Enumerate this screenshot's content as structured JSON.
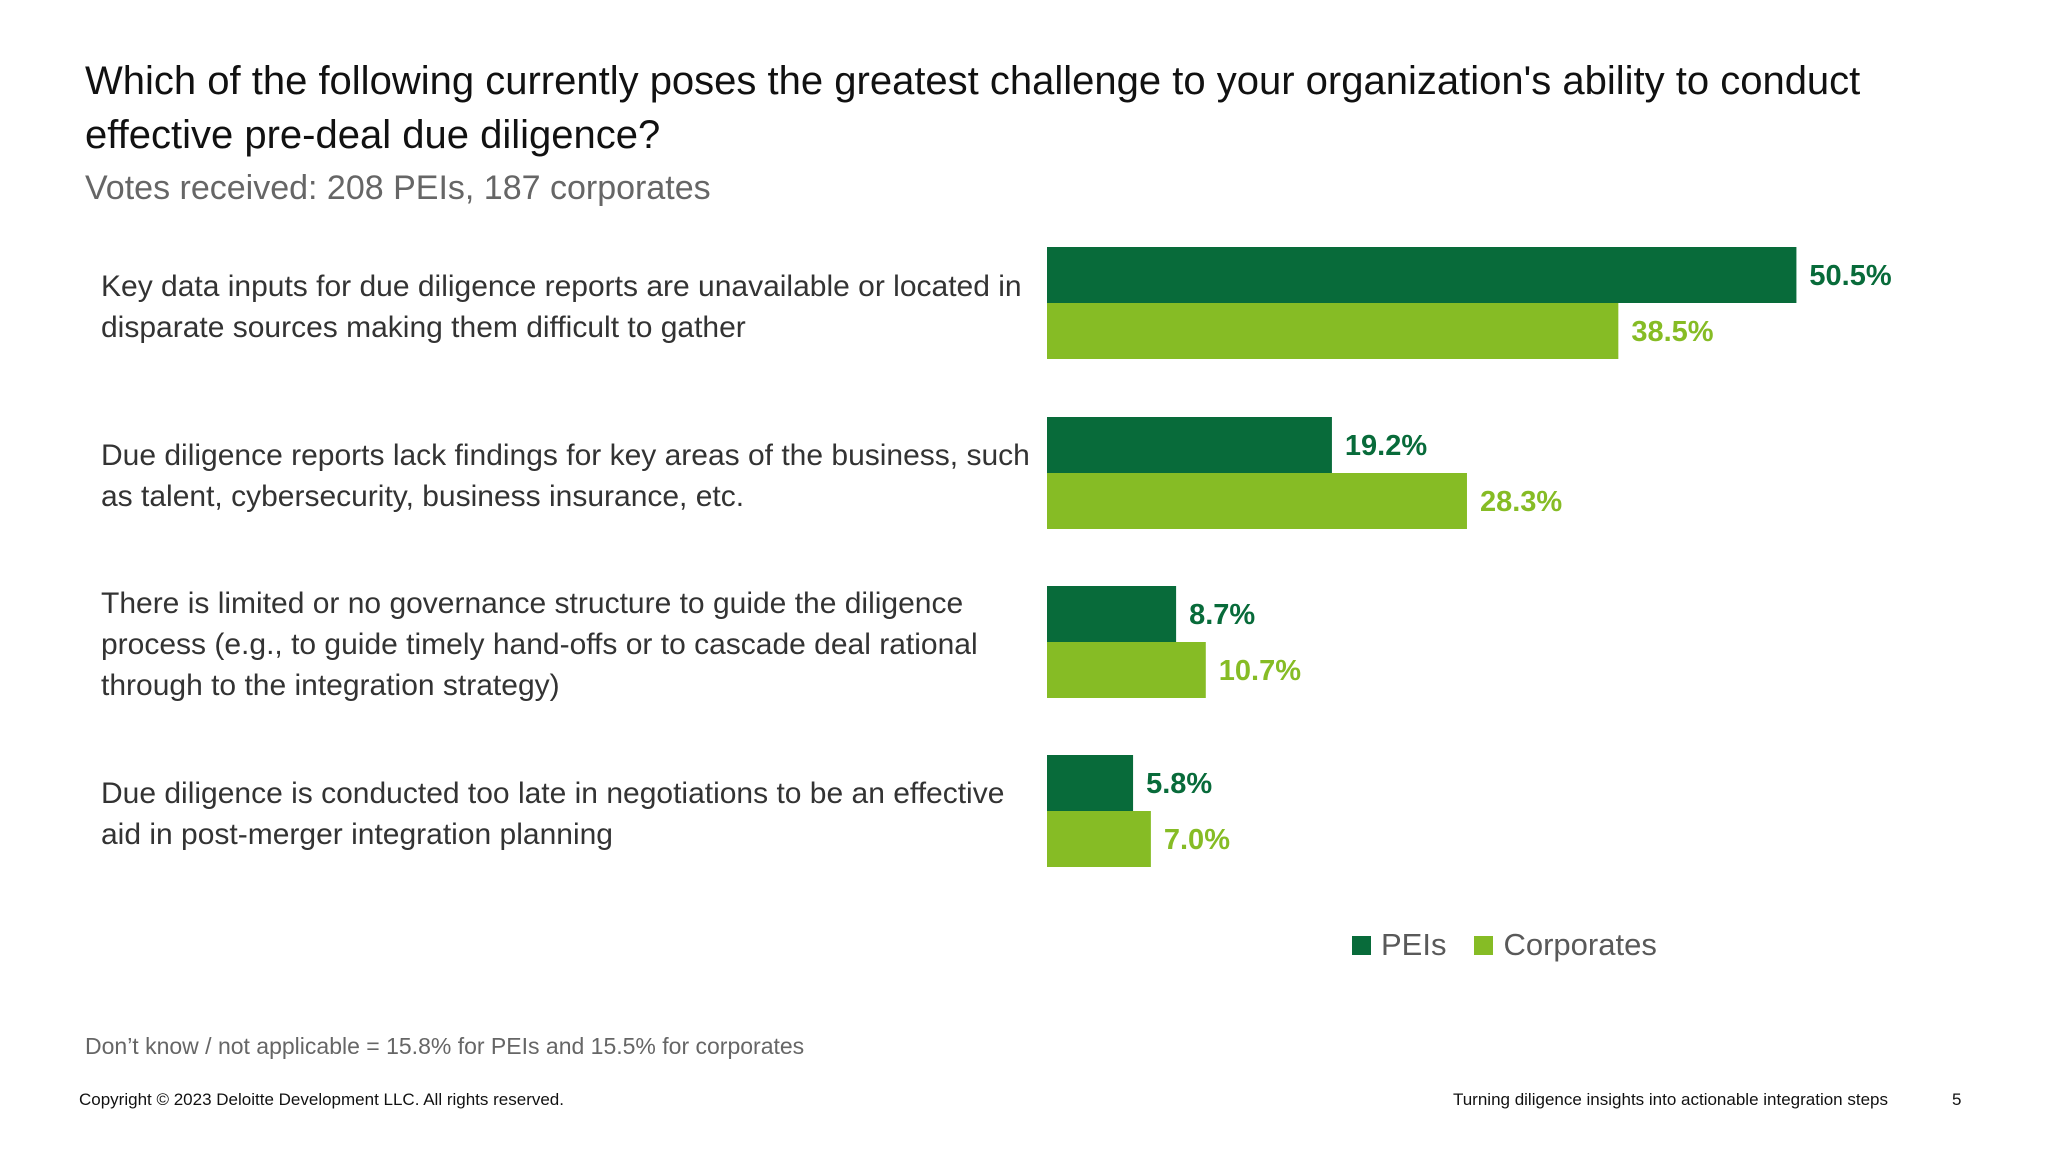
{
  "slide": {
    "title": "Which of the following currently poses the greatest challenge to your organization's ability to conduct effective pre-deal due diligence?",
    "subtitle": "Votes received: 208 PEIs, 187 corporates",
    "footnote": "Don’t know / not applicable = 15.8% for PEIs and 15.5% for corporates",
    "copyright": "Copyright © 2023 Deloitte Development LLC. All rights reserved.",
    "footer_title": "Turning diligence insights into actionable integration steps",
    "page_number": "5"
  },
  "colors": {
    "peis": "#086B3A",
    "corporates": "#86BC25"
  },
  "chart_data": {
    "type": "bar",
    "orientation": "horizontal",
    "categories": [
      "Key data inputs for due diligence reports are unavailable or located in disparate sources making them difficult to gather",
      "Due diligence reports lack findings for key areas of the business, such as talent, cybersecurity, business insurance, etc.",
      "There is limited or no governance structure to guide the diligence process (e.g., to guide timely hand-offs or to cascade deal rational through to the integration strategy)",
      "Due diligence is conducted too late in negotiations to be an effective aid in post-merger integration planning"
    ],
    "series": [
      {
        "name": "PEIs",
        "values": [
          50.5,
          19.2,
          8.7,
          5.8
        ],
        "labels": [
          "50.5%",
          "19.2%",
          "8.7%",
          "5.8%"
        ]
      },
      {
        "name": "Corporates",
        "values": [
          38.5,
          28.3,
          10.7,
          7.0
        ],
        "labels": [
          "38.5%",
          "28.3%",
          "10.7%",
          "7.0%"
        ]
      }
    ],
    "value_unit": "%",
    "xlim": [
      0,
      60
    ],
    "grid": false,
    "legend": "bottom",
    "data_labels": true
  }
}
